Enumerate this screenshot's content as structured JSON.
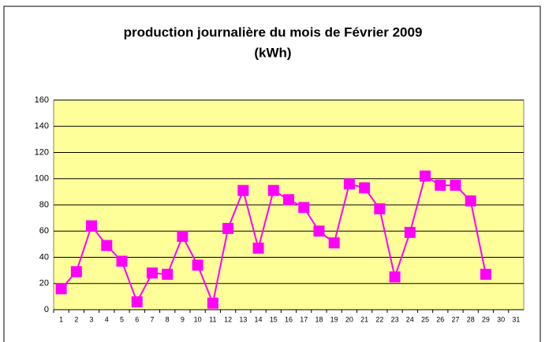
{
  "chart_data": {
    "type": "line",
    "title": "production journalière du mois  de Février 2009",
    "subtitle": "(kWh)",
    "categories": [
      "1",
      "2",
      "3",
      "4",
      "5",
      "6",
      "7",
      "8",
      "9",
      "10",
      "11",
      "12",
      "13",
      "14",
      "15",
      "16",
      "17",
      "18",
      "19",
      "20",
      "21",
      "22",
      "23",
      "24",
      "25",
      "26",
      "27",
      "28",
      "29",
      "30",
      "31"
    ],
    "values": [
      16,
      29,
      64,
      49,
      37,
      6,
      28,
      27,
      56,
      34,
      5,
      62,
      91,
      47,
      91,
      84,
      78,
      60,
      51,
      96,
      93,
      77,
      25,
      59,
      102,
      95,
      95,
      83,
      27,
      null,
      null
    ],
    "color": "#ff00ff",
    "plot_background": "#ffff99",
    "ylim": [
      0,
      160
    ],
    "yticks": [
      0,
      20,
      40,
      60,
      80,
      100,
      120,
      140,
      160
    ],
    "grid": true
  }
}
